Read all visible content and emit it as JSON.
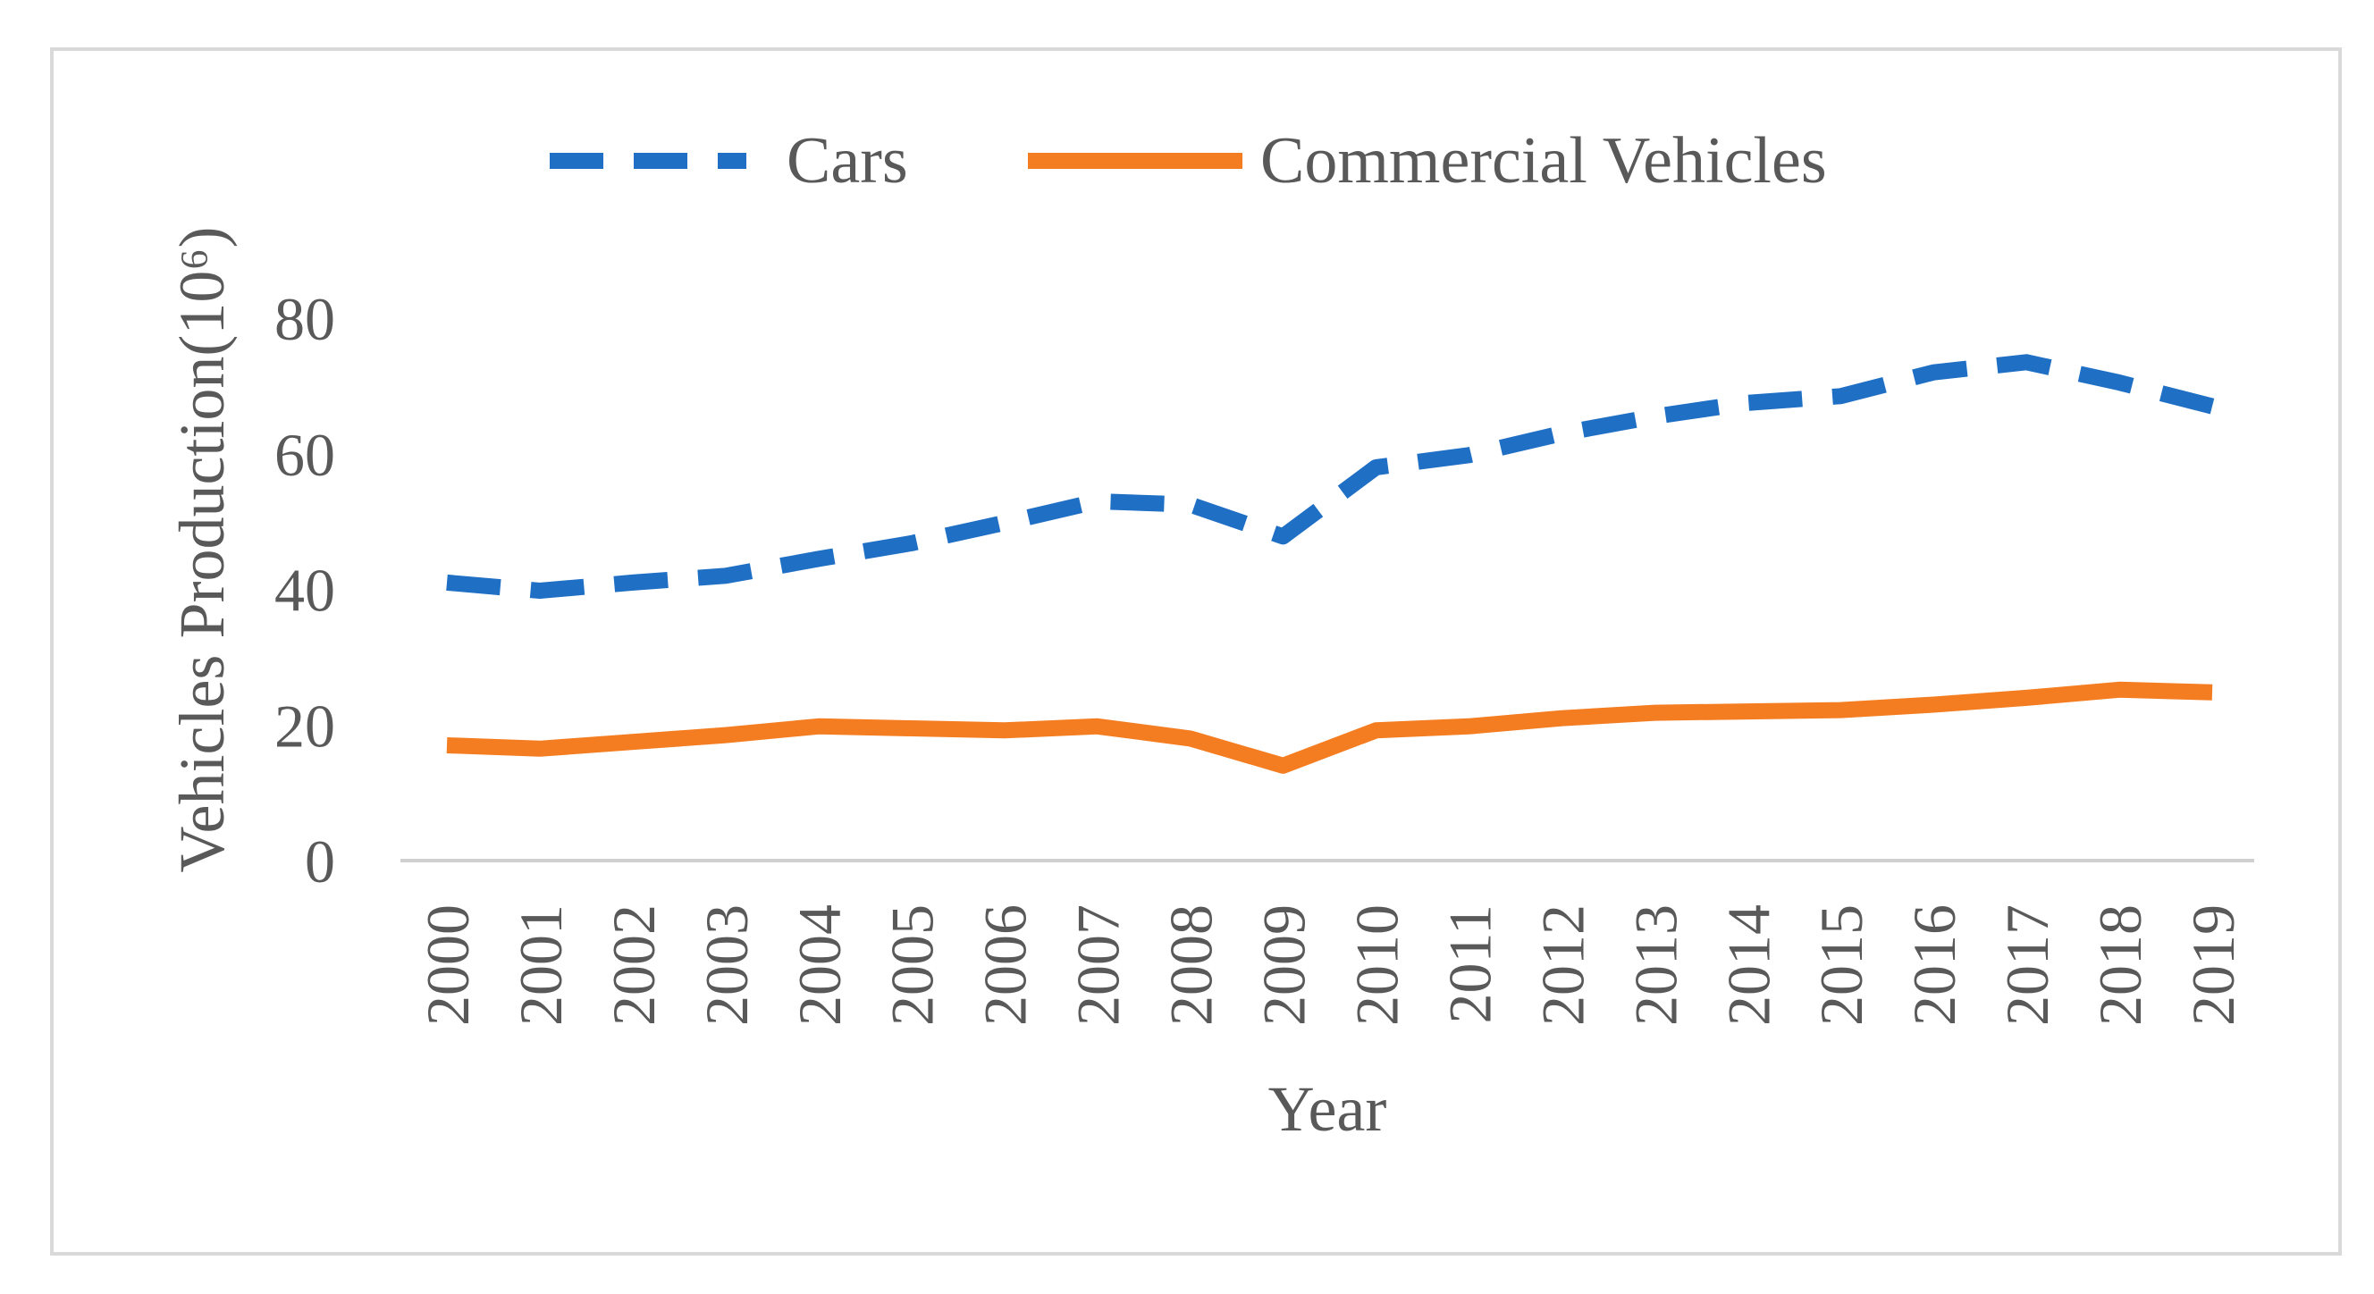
{
  "chart_data": {
    "type": "line",
    "title": "",
    "xlabel": "Year",
    "ylabel": "Vehicles Production(10⁶)",
    "ylim": [
      0,
      80
    ],
    "yticks": [
      "0",
      "20",
      "40",
      "60",
      "80"
    ],
    "categories": [
      "2000",
      "2001",
      "2002",
      "2003",
      "2004",
      "2005",
      "2006",
      "2007",
      "2008",
      "2009",
      "2010",
      "2011",
      "2012",
      "2013",
      "2014",
      "2015",
      "2016",
      "2017",
      "2018",
      "2019"
    ],
    "legend_position": "top-center",
    "grid": false,
    "series": [
      {
        "name": "Cars",
        "style": "dashed",
        "color": "#1f6fc5",
        "values": [
          41,
          39.8,
          41,
          42,
          44.5,
          46.8,
          49.8,
          53,
          52.5,
          47.8,
          58,
          59.8,
          63,
          65.5,
          67.5,
          68.5,
          72,
          73.5,
          70.5,
          67
        ]
      },
      {
        "name": "Commercial Vehicles",
        "style": "solid",
        "color": "#f47d21",
        "values": [
          17,
          16.5,
          17.5,
          18.5,
          19.8,
          19.5,
          19.2,
          19.8,
          18,
          14,
          19.2,
          19.8,
          21,
          21.8,
          22,
          22.2,
          23,
          24,
          25.2,
          24.8
        ]
      }
    ]
  }
}
